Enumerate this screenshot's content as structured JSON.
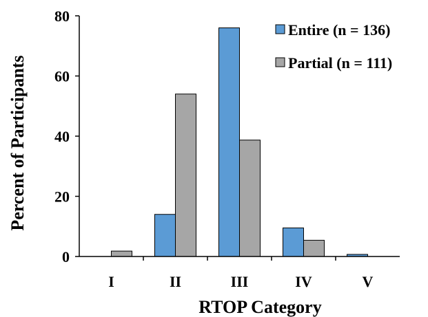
{
  "chart_data": {
    "type": "bar",
    "categories": [
      "I",
      "II",
      "III",
      "IV",
      "V"
    ],
    "series": [
      {
        "name": "Entire (n = 136)",
        "color": "#5b9bd5",
        "values": [
          0,
          14,
          76,
          9.5,
          0.7
        ]
      },
      {
        "name": "Partial (n = 111)",
        "color": "#a6a6a6",
        "values": [
          1.8,
          54,
          38.7,
          5.4,
          0
        ]
      }
    ],
    "xlabel": "RTOP Category",
    "ylabel": "Percent of Participants",
    "ylim": [
      0,
      80
    ],
    "yticks": [
      0,
      20,
      40,
      60,
      80
    ],
    "grid": false,
    "legend": "top-right"
  }
}
